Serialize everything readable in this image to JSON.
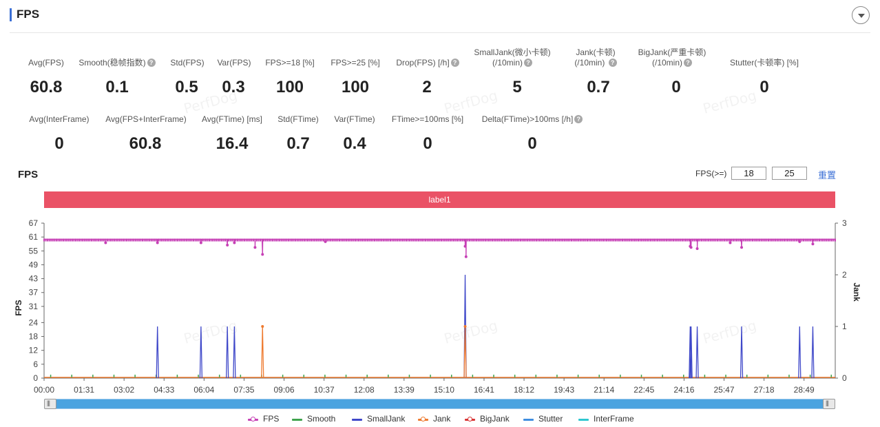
{
  "header": {
    "title": "FPS",
    "toggle_icon": "chevron-down-icon"
  },
  "metrics_row1": [
    {
      "label": "Avg(FPS)",
      "value": "60.8",
      "help": false
    },
    {
      "label": "Smooth(稳帧指数)",
      "value": "0.1",
      "help": true
    },
    {
      "label": "Std(FPS)",
      "value": "0.5",
      "help": false
    },
    {
      "label": "Var(FPS)",
      "value": "0.3",
      "help": false
    },
    {
      "label": "FPS>=18 [%]",
      "value": "100",
      "help": false
    },
    {
      "label": "FPS>=25 [%]",
      "value": "100",
      "help": false
    },
    {
      "label": "Drop(FPS) [/h]",
      "value": "2",
      "help": true
    },
    {
      "label": "SmallJank(微小卡顿)",
      "label2": "(/10min)",
      "value": "5",
      "help": true
    },
    {
      "label": "Jank(卡顿)",
      "label2": "(/10min)",
      "value": "0.7",
      "help": true
    },
    {
      "label": "BigJank(严重卡顿)",
      "label2": "(/10min)",
      "value": "0",
      "help": true
    },
    {
      "label": "Stutter(卡顿率) [%]",
      "value": "0",
      "help": false
    }
  ],
  "metrics_row2": [
    {
      "label": "Avg(InterFrame)",
      "value": "0",
      "help": false
    },
    {
      "label": "Avg(FPS+InterFrame)",
      "value": "60.8",
      "help": false
    },
    {
      "label": "Avg(FTime) [ms]",
      "value": "16.4",
      "help": false
    },
    {
      "label": "Std(FTime)",
      "value": "0.7",
      "help": false
    },
    {
      "label": "Var(FTime)",
      "value": "0.4",
      "help": false
    },
    {
      "label": "FTime>=100ms [%]",
      "value": "0",
      "help": false
    },
    {
      "label": "Delta(FTime)>100ms [/h]",
      "value": "0",
      "help": true
    }
  ],
  "controls": {
    "chart_title": "FPS",
    "fps_threshold_label": "FPS(>=)",
    "threshold_low": "18",
    "threshold_high": "25",
    "reset_label": "重置",
    "band_label": "label1"
  },
  "watermark_text": "PerfDog",
  "colors": {
    "fps": "#c640b5",
    "smooth": "#3fa34d",
    "smalljank": "#3f48c9",
    "jank": "#ee7a2f",
    "bigjank": "#d93535",
    "stutter": "#3f8ee0",
    "interframe": "#2ec7d0",
    "band": "#ea5266",
    "accent": "#3b6fd6"
  },
  "chart_data": {
    "type": "line",
    "title": "FPS",
    "xlabel": "",
    "ylabel": "FPS",
    "y2label": "Jank",
    "x_ticks": [
      "00:00",
      "01:31",
      "03:02",
      "04:33",
      "06:04",
      "07:35",
      "09:06",
      "10:37",
      "12:08",
      "13:39",
      "15:10",
      "16:41",
      "18:12",
      "19:43",
      "21:14",
      "22:45",
      "24:16",
      "25:47",
      "27:18",
      "28:49"
    ],
    "x_range_seconds": [
      0,
      1800
    ],
    "y_ticks": [
      0,
      6,
      12,
      18,
      24,
      31,
      37,
      43,
      49,
      55,
      61,
      67
    ],
    "ylim": [
      0,
      67
    ],
    "y2_ticks": [
      0,
      1,
      2,
      3
    ],
    "y2lim": [
      0,
      3
    ],
    "grid": false,
    "legend_position": "bottom",
    "series": [
      {
        "name": "FPS",
        "axis": "left",
        "baseline": 60,
        "dips": [
          {
            "t": 140,
            "v": 58.5
          },
          {
            "t": 258,
            "v": 58.5
          },
          {
            "t": 357,
            "v": 58.5
          },
          {
            "t": 417,
            "v": 57.5
          },
          {
            "t": 433,
            "v": 58.5
          },
          {
            "t": 480,
            "v": 56.5
          },
          {
            "t": 497,
            "v": 53.5
          },
          {
            "t": 640,
            "v": 59
          },
          {
            "t": 958,
            "v": 57
          },
          {
            "t": 960,
            "v": 52.5
          },
          {
            "t": 1470,
            "v": 57
          },
          {
            "t": 1472,
            "v": 56.5
          },
          {
            "t": 1486,
            "v": 56
          },
          {
            "t": 1561,
            "v": 58.5
          },
          {
            "t": 1587,
            "v": 56.5
          },
          {
            "t": 1719,
            "v": 59
          },
          {
            "t": 1749,
            "v": 58
          }
        ]
      },
      {
        "name": "Smooth",
        "axis": "right",
        "values": []
      },
      {
        "name": "SmallJank",
        "axis": "right",
        "spikes": [
          {
            "t": 258,
            "v": 1
          },
          {
            "t": 357,
            "v": 1
          },
          {
            "t": 417,
            "v": 1
          },
          {
            "t": 433,
            "v": 1
          },
          {
            "t": 958,
            "v": 2
          },
          {
            "t": 1470,
            "v": 1
          },
          {
            "t": 1472,
            "v": 1
          },
          {
            "t": 1486,
            "v": 1
          },
          {
            "t": 1587,
            "v": 1
          },
          {
            "t": 1719,
            "v": 1
          },
          {
            "t": 1749,
            "v": 1
          }
        ]
      },
      {
        "name": "Jank",
        "axis": "right",
        "spikes": [
          {
            "t": 497,
            "v": 1
          },
          {
            "t": 958,
            "v": 1
          }
        ]
      },
      {
        "name": "BigJank",
        "axis": "right",
        "values": []
      },
      {
        "name": "Stutter",
        "axis": "right",
        "values": []
      },
      {
        "name": "InterFrame",
        "axis": "right",
        "values": []
      }
    ]
  }
}
